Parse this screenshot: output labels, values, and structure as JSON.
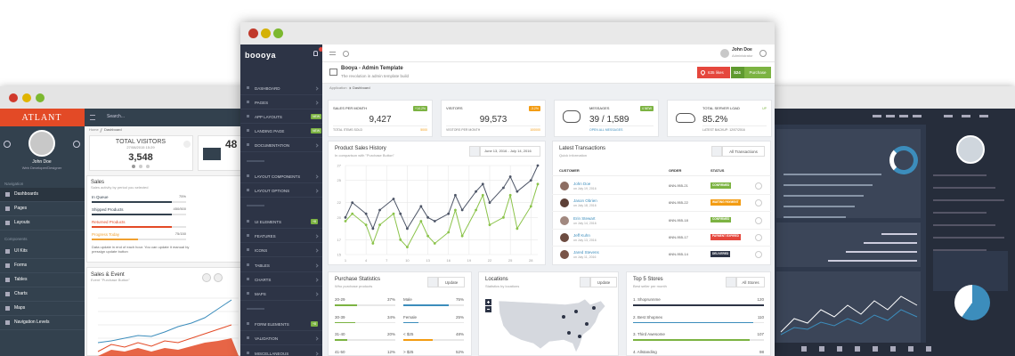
{
  "atlant": {
    "logo": "ATLANT",
    "search": "Search...",
    "user": {
      "name": "John Doe",
      "role": "Web Developer/Designer"
    },
    "nav_header": "Navigation",
    "nav": [
      "Dashboards",
      "Pages",
      "Layouts"
    ],
    "components_header": "Components",
    "components": [
      "UI Kits",
      "Forms",
      "Tables",
      "Charts",
      "Maps",
      "Navigation Levels"
    ],
    "breadcrumb": [
      "Home",
      "Dashboard"
    ],
    "visitors": {
      "title": "TOTAL VISITORS",
      "date": "27/08/2015 15:29",
      "value": "3,548"
    },
    "messages": "48",
    "sales": {
      "title": "Sales",
      "subtitle": "Sales activity by period you selected",
      "rows": [
        {
          "label": "In Queue",
          "value": "75%",
          "color": "#33414e"
        },
        {
          "label": "Shipped Products",
          "value": "450/500",
          "color": "#33414e"
        },
        {
          "label": "Returned Products",
          "color": "#e34a26"
        },
        {
          "label": "Progress Today",
          "value": "75/150",
          "color": "#f0a030"
        }
      ],
      "note": "Data update in end of each hour. You can update it manual by pressign update button"
    },
    "event": {
      "title": "Sales & Event",
      "subtitle": "Event \"Purchase Button\""
    }
  },
  "booya": {
    "logo": "boooya",
    "nav": [
      {
        "label": "DASHBOARD"
      },
      {
        "label": "PAGES"
      },
      {
        "label": "APP LAYOUTS",
        "badge": "NEW"
      },
      {
        "label": "LANDING PAGE",
        "badge": "NEW"
      },
      {
        "label": "DOCUMENTATION"
      },
      {
        "label": "LAYOUT COMPONENTS"
      },
      {
        "label": "LAYOUT OPTIONS"
      },
      {
        "label": "UI ELEMENTS",
        "badge": "+8"
      },
      {
        "label": "FEATURES"
      },
      {
        "label": "ICONS"
      },
      {
        "label": "TABLES"
      },
      {
        "label": "CHARTS"
      },
      {
        "label": "MAPS"
      },
      {
        "label": "FORM ELEMENTS",
        "badge": "+8"
      },
      {
        "label": "VALIDATION"
      },
      {
        "label": "MISCELLANEOUS"
      }
    ],
    "user": {
      "name": "John Doe",
      "role": "Administrator"
    },
    "title": "Booya - Admin Template",
    "subtitle": "The revolution in admin template build",
    "likes": "635 likes",
    "price": "$24",
    "purchase": "Purchase",
    "breadcrumb": [
      "Application",
      "Dashboard"
    ],
    "stats": [
      {
        "title": "SALES PER MONTH",
        "badge": "+14.2%",
        "badge_color": "#7cb342",
        "value": "9,427",
        "footer": "TOTAL ITEMS SOLD",
        "footer_value": "5000"
      },
      {
        "title": "VISITORS",
        "badge": "-3.2%",
        "badge_color": "#f39c12",
        "value": "99,573",
        "footer": "VISITORS PER MONTH",
        "footer_value": "100000"
      },
      {
        "title": "MESSAGES",
        "badge": "4 NEW",
        "badge_color": "#7cb342",
        "value": "39 / 1,589",
        "footer": "OPEN ALL MESSAGES"
      },
      {
        "title": "TOTAL SERVER LOAD",
        "badge": "UP",
        "value": "85.2%",
        "footer": "LATEST BACKUP: 12/07/2016"
      }
    ],
    "sales_history": {
      "title": "Product Sales History",
      "subtitle": "In comparison with \"Purchase Button\"",
      "date_range": "June 13, 2016 - July 14, 2016",
      "chart": {
        "type": "line",
        "x": [
          1,
          2,
          4,
          5,
          6,
          8,
          9,
          10,
          12,
          13,
          14,
          16,
          17,
          18,
          20,
          21,
          22,
          24,
          25,
          26,
          28,
          29
        ],
        "series": [
          {
            "color": "#4c5466",
            "values": [
              20,
              22,
              20.5,
              18.5,
              21,
              22.5,
              20.5,
              18.5,
              21.5,
              20,
              19.5,
              20.5,
              23,
              21,
              23.5,
              24.5,
              22,
              24,
              25.5,
              23.5,
              25,
              27
            ]
          },
          {
            "color": "#8bc34a",
            "values": [
              19.5,
              20.5,
              19,
              16.5,
              19,
              20.5,
              17,
              16,
              19.5,
              17.5,
              16.5,
              18,
              21,
              17.5,
              21,
              23,
              19,
              20,
              23,
              18.5,
              21.5,
              24.5
            ]
          }
        ],
        "xlim": [
          1,
          29
        ],
        "xticks": [
          1,
          4,
          7,
          10,
          13,
          16,
          19,
          22,
          25,
          28
        ],
        "ylim": [
          15,
          27
        ],
        "yticks": [
          15,
          17,
          20,
          22,
          25,
          27
        ],
        "grid": true
      }
    },
    "transactions": {
      "title": "Latest Transactions",
      "subtitle": "Quick information",
      "button": "All Transactions",
      "columns": [
        "CUSTOMER",
        "ORDER",
        "STATUS"
      ],
      "rows": [
        {
          "name": "John Doe",
          "date": "on July 19, 2016",
          "order": "6NN-955-21",
          "status": "CONFIRMED",
          "status_color": "#7cb342"
        },
        {
          "name": "Jason Obrien",
          "date": "on July 18, 2016",
          "order": "6NN-955-22",
          "status": "WAITING PAYMENT",
          "status_color": "#f39c12"
        },
        {
          "name": "Erin Stewart",
          "date": "on July 14, 2016",
          "order": "6NN-955-18",
          "status": "CONFIRMED",
          "status_color": "#7cb342"
        },
        {
          "name": "Jeff Kuhn",
          "date": "on July 13, 2016",
          "order": "6NN-955-17",
          "status": "PAYMENT EXPIRED",
          "status_color": "#e5473d"
        },
        {
          "name": "Jared Stevens",
          "date": "on July 11, 2016",
          "order": "6NN-955-14",
          "status": "DELIVERED",
          "status_color": "#2d3446"
        }
      ]
    },
    "purchase_stats": {
      "title": "Purchase Statistics",
      "subtitle": "Who purchase products",
      "button": "Update",
      "left": [
        {
          "label": "20-29",
          "value": "37%",
          "color": "#7cb342"
        },
        {
          "label": "30-39",
          "value": "34%",
          "color": "#7cb342"
        },
        {
          "label": "31-40",
          "value": "20%",
          "color": "#7cb342"
        },
        {
          "label": "41-50",
          "value": "12%",
          "color": "#7cb342"
        }
      ],
      "right": [
        {
          "label": "Male",
          "value": "75%",
          "color": "#3c8dbc"
        },
        {
          "label": "Female",
          "value": "25%",
          "color": "#3c8dbc"
        },
        {
          "label": "< $25",
          "value": "48%",
          "color": "#f39c12"
        },
        {
          "label": "> $25",
          "value": "52%",
          "color": "#f39c12"
        }
      ]
    },
    "locations": {
      "title": "Locations",
      "subtitle": "Statistics by locations",
      "button": "Update"
    },
    "stores": {
      "title": "Top 5 Stores",
      "subtitle": "Best seller per month",
      "button": "All Stores",
      "rows": [
        {
          "label": "1. Shoprunnme",
          "value": "120",
          "color": "#2d3446"
        },
        {
          "label": "2. Best Shopnex",
          "value": "110",
          "color": "#3c8dbc"
        },
        {
          "label": "3. Third Awesome",
          "value": "107",
          "color": "#7cb342"
        },
        {
          "label": "4. Allstanding",
          "value": "98",
          "color": "#f39c12"
        }
      ]
    }
  }
}
